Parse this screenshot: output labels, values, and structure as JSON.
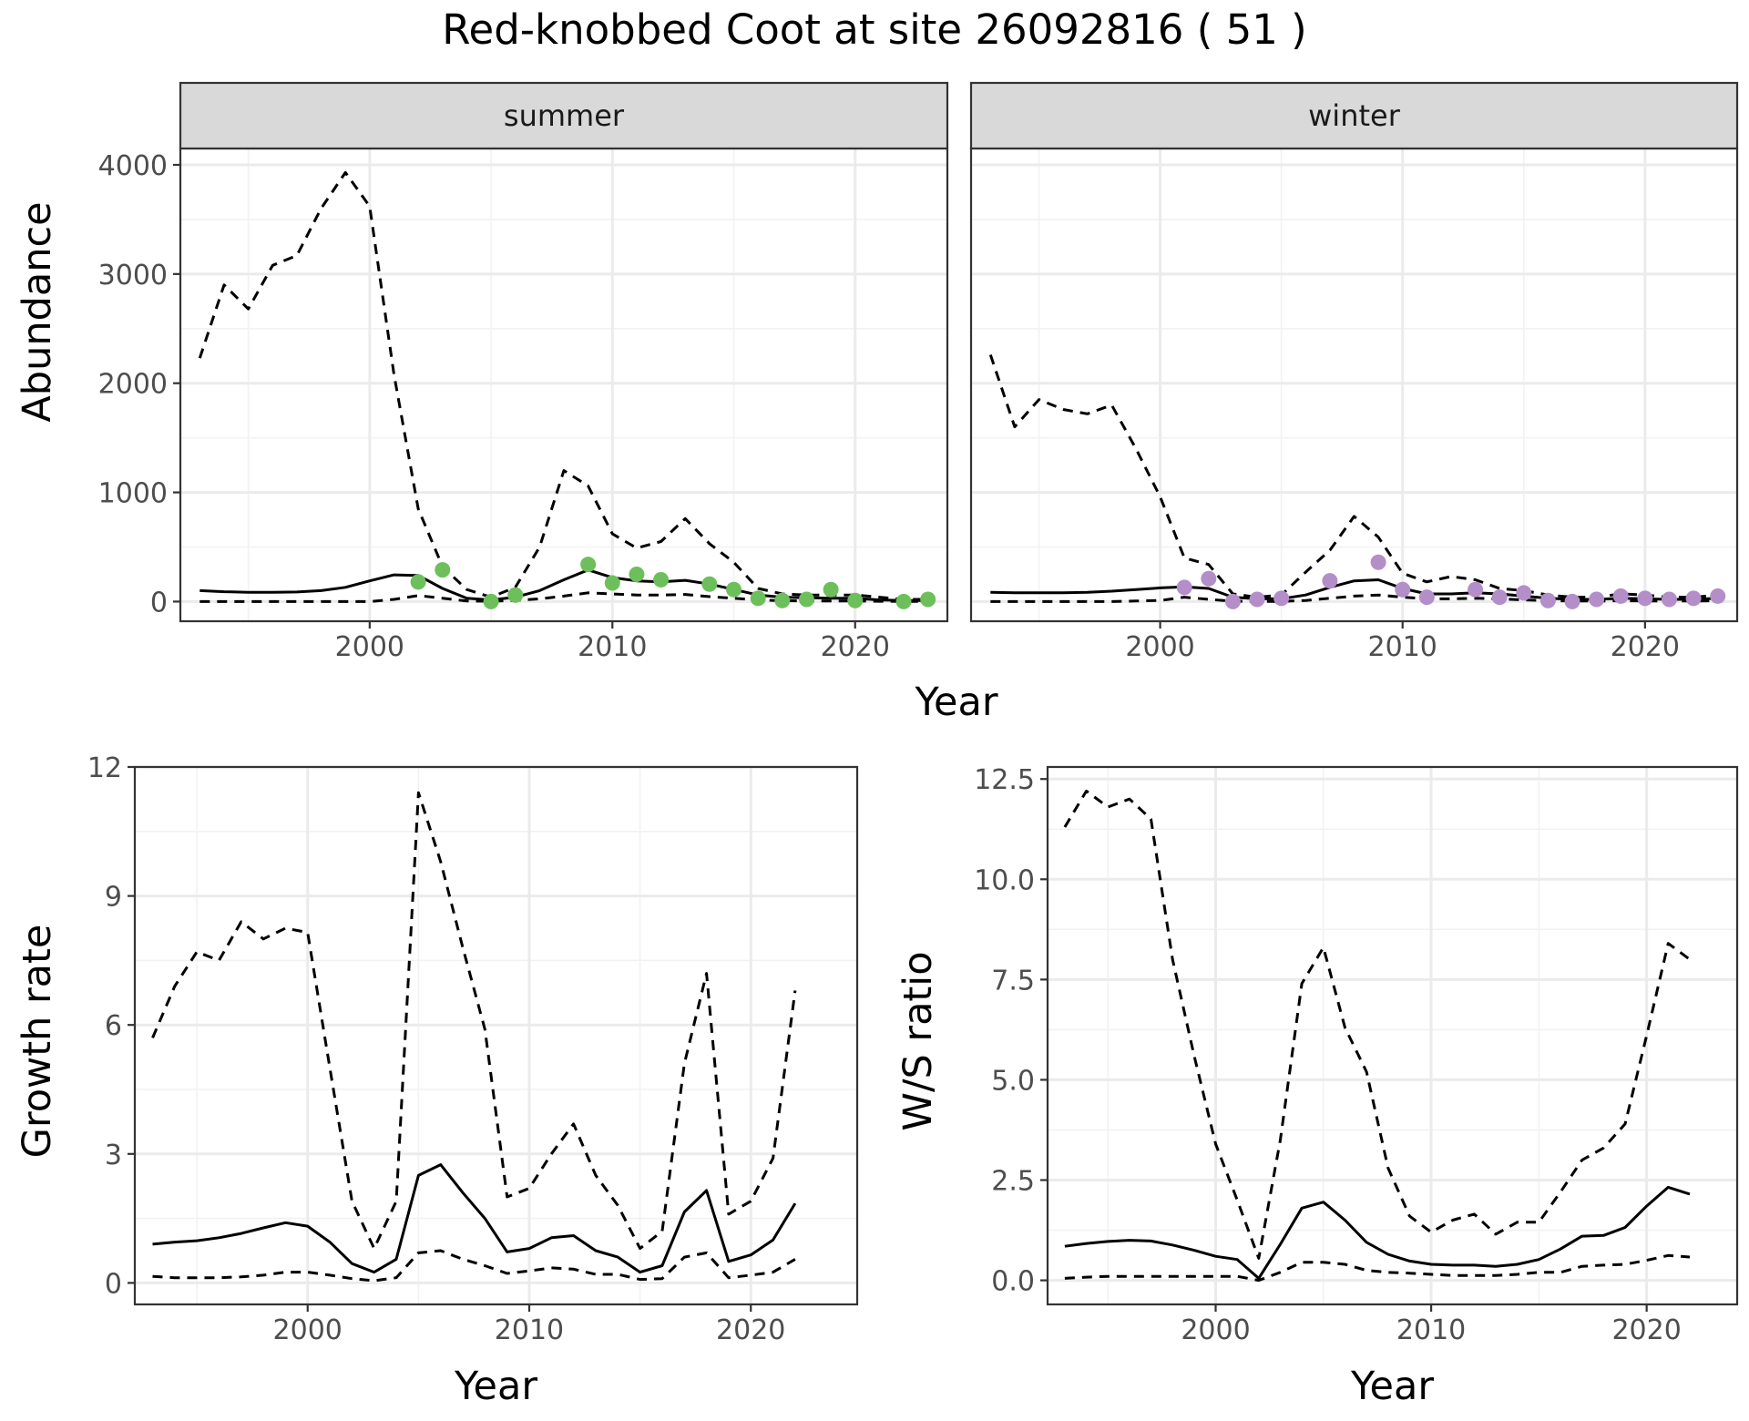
{
  "title": "Red-knobbed Coot at site 26092816 ( 51 )",
  "chart_data": [
    {
      "id": "abundance",
      "type": "line",
      "facets": [
        "summer",
        "winter"
      ],
      "xlabel": "Year",
      "ylabel": "Abundance",
      "xlim": [
        1992.2,
        2023.8
      ],
      "ylim": [
        -180,
        4150
      ],
      "xticks": [
        2000,
        2010,
        2020
      ],
      "yticks": [
        0,
        1000,
        2000,
        3000,
        4000
      ],
      "grid": true,
      "x": [
        1993,
        1994,
        1995,
        1996,
        1997,
        1998,
        1999,
        2000,
        2001,
        2002,
        2003,
        2004,
        2005,
        2006,
        2007,
        2008,
        2009,
        2010,
        2011,
        2012,
        2013,
        2014,
        2015,
        2016,
        2017,
        2018,
        2019,
        2020,
        2021,
        2022,
        2023
      ],
      "panels": {
        "summer": {
          "point_color": "#6dbf5b",
          "series": [
            {
              "style": "solid",
              "values": [
                100,
                90,
                85,
                85,
                88,
                100,
                130,
                190,
                245,
                240,
                120,
                30,
                15,
                40,
                100,
                200,
                290,
                220,
                190,
                180,
                195,
                160,
                110,
                60,
                40,
                35,
                30,
                30,
                15,
                10,
                10
              ]
            },
            {
              "style": "dashed",
              "values": [
                2230,
                2900,
                2680,
                3080,
                3170,
                3600,
                3930,
                3620,
                2080,
                850,
                320,
                110,
                40,
                130,
                500,
                1200,
                1060,
                620,
                490,
                550,
                760,
                530,
                360,
                120,
                70,
                60,
                60,
                60,
                40,
                20,
                20
              ]
            },
            {
              "style": "dashed",
              "values": [
                0,
                0,
                0,
                0,
                0,
                0,
                0,
                0,
                20,
                55,
                30,
                5,
                3,
                10,
                25,
                50,
                80,
                70,
                60,
                60,
                65,
                45,
                30,
                15,
                8,
                5,
                5,
                5,
                3,
                2,
                2
              ]
            }
          ],
          "points": {
            "x": [
              2002,
              2003,
              2005,
              2006,
              2009,
              2010,
              2011,
              2012,
              2014,
              2015,
              2016,
              2017,
              2018,
              2019,
              2020,
              2022,
              2023
            ],
            "y": [
              180,
              290,
              0,
              60,
              340,
              170,
              250,
              200,
              160,
              110,
              30,
              10,
              20,
              110,
              10,
              0,
              20
            ]
          }
        },
        "winter": {
          "point_color": "#b48ec8",
          "series": [
            {
              "style": "solid",
              "values": [
                85,
                80,
                80,
                80,
                85,
                95,
                110,
                125,
                135,
                120,
                40,
                25,
                25,
                60,
                130,
                190,
                200,
                120,
                70,
                70,
                80,
                70,
                50,
                30,
                20,
                20,
                30,
                25,
                20,
                20,
                30
              ]
            },
            {
              "style": "dashed",
              "values": [
                2260,
                1600,
                1850,
                1760,
                1720,
                1800,
                1400,
                960,
                400,
                340,
                70,
                40,
                60,
                270,
                470,
                780,
                590,
                260,
                180,
                230,
                200,
                120,
                100,
                60,
                40,
                40,
                70,
                60,
                40,
                40,
                60
              ]
            },
            {
              "style": "dashed",
              "values": [
                0,
                0,
                0,
                0,
                0,
                0,
                5,
                10,
                40,
                20,
                3,
                2,
                2,
                10,
                30,
                50,
                60,
                40,
                25,
                25,
                30,
                25,
                15,
                8,
                5,
                5,
                8,
                6,
                5,
                5,
                8
              ]
            }
          ],
          "points": {
            "x": [
              2001,
              2002,
              2003,
              2004,
              2005,
              2007,
              2009,
              2010,
              2011,
              2013,
              2014,
              2015,
              2016,
              2017,
              2018,
              2019,
              2020,
              2021,
              2022,
              2023
            ],
            "y": [
              130,
              210,
              0,
              20,
              30,
              190,
              360,
              110,
              40,
              110,
              40,
              80,
              10,
              0,
              20,
              50,
              30,
              20,
              30,
              50
            ]
          }
        }
      }
    },
    {
      "id": "growth",
      "type": "line",
      "xlabel": "Year",
      "ylabel": "Growth rate",
      "xlim": [
        1992.2,
        2024.8
      ],
      "ylim": [
        -0.5,
        12
      ],
      "xticks": [
        2000,
        2010,
        2020
      ],
      "yticks": [
        0,
        3,
        6,
        9,
        12
      ],
      "grid": true,
      "x": [
        1993,
        1994,
        1995,
        1996,
        1997,
        1998,
        1999,
        2000,
        2001,
        2002,
        2003,
        2004,
        2005,
        2006,
        2007,
        2008,
        2009,
        2010,
        2011,
        2012,
        2013,
        2014,
        2015,
        2016,
        2017,
        2018,
        2019,
        2020,
        2021,
        2022
      ],
      "series": [
        {
          "style": "solid",
          "values": [
            0.9,
            0.95,
            0.98,
            1.05,
            1.15,
            1.28,
            1.4,
            1.32,
            0.95,
            0.45,
            0.25,
            0.55,
            2.5,
            2.75,
            2.1,
            1.5,
            0.72,
            0.8,
            1.05,
            1.1,
            0.75,
            0.6,
            0.25,
            0.4,
            1.65,
            2.15,
            0.5,
            0.65,
            1.0,
            1.85
          ]
        },
        {
          "style": "dashed",
          "values": [
            5.7,
            6.9,
            7.7,
            7.5,
            8.4,
            8.0,
            8.25,
            8.15,
            5.0,
            1.9,
            0.8,
            1.9,
            11.4,
            9.8,
            7.8,
            5.9,
            2.0,
            2.2,
            3.0,
            3.7,
            2.5,
            1.8,
            0.8,
            1.2,
            5.1,
            7.2,
            1.6,
            1.9,
            2.9,
            6.8
          ]
        },
        {
          "style": "dashed",
          "values": [
            0.15,
            0.12,
            0.12,
            0.12,
            0.14,
            0.18,
            0.25,
            0.25,
            0.18,
            0.1,
            0.05,
            0.12,
            0.7,
            0.75,
            0.55,
            0.4,
            0.22,
            0.28,
            0.35,
            0.32,
            0.2,
            0.2,
            0.08,
            0.1,
            0.6,
            0.7,
            0.12,
            0.18,
            0.25,
            0.55
          ]
        }
      ]
    },
    {
      "id": "ws_ratio",
      "type": "line",
      "xlabel": "Year",
      "ylabel": "W/S ratio",
      "xlim": [
        1992.2,
        2024.2
      ],
      "ylim": [
        -0.6,
        12.8
      ],
      "xticks": [
        2000,
        2010,
        2020
      ],
      "yticks": [
        0.0,
        2.5,
        5.0,
        7.5,
        10.0,
        12.5
      ],
      "ytick_labels": [
        "0.0",
        "2.5",
        "5.0",
        "7.5",
        "10.0",
        "12.5"
      ],
      "grid": true,
      "x": [
        1993,
        1994,
        1995,
        1996,
        1997,
        1998,
        1999,
        2000,
        2001,
        2002,
        2003,
        2004,
        2005,
        2006,
        2007,
        2008,
        2009,
        2010,
        2011,
        2012,
        2013,
        2014,
        2015,
        2016,
        2017,
        2018,
        2019,
        2020,
        2021,
        2022
      ],
      "series": [
        {
          "style": "solid",
          "values": [
            0.85,
            0.92,
            0.97,
            1.0,
            0.98,
            0.88,
            0.75,
            0.6,
            0.52,
            0.05,
            0.9,
            1.8,
            1.95,
            1.5,
            0.95,
            0.65,
            0.48,
            0.4,
            0.38,
            0.38,
            0.35,
            0.4,
            0.52,
            0.78,
            1.1,
            1.12,
            1.32,
            1.85,
            2.32,
            2.15
          ]
        },
        {
          "style": "dashed",
          "values": [
            11.3,
            12.2,
            11.8,
            12.0,
            11.5,
            8.0,
            5.6,
            3.4,
            2.0,
            0.55,
            3.5,
            7.4,
            8.3,
            6.3,
            5.2,
            2.8,
            1.6,
            1.2,
            1.5,
            1.65,
            1.15,
            1.45,
            1.45,
            2.2,
            3.0,
            3.3,
            3.9,
            6.1,
            8.4,
            8.0
          ]
        },
        {
          "style": "dashed",
          "values": [
            0.05,
            0.08,
            0.1,
            0.1,
            0.1,
            0.1,
            0.1,
            0.1,
            0.1,
            0.0,
            0.2,
            0.45,
            0.45,
            0.4,
            0.25,
            0.2,
            0.18,
            0.15,
            0.12,
            0.12,
            0.12,
            0.15,
            0.2,
            0.2,
            0.35,
            0.38,
            0.4,
            0.5,
            0.62,
            0.58
          ]
        }
      ]
    }
  ]
}
